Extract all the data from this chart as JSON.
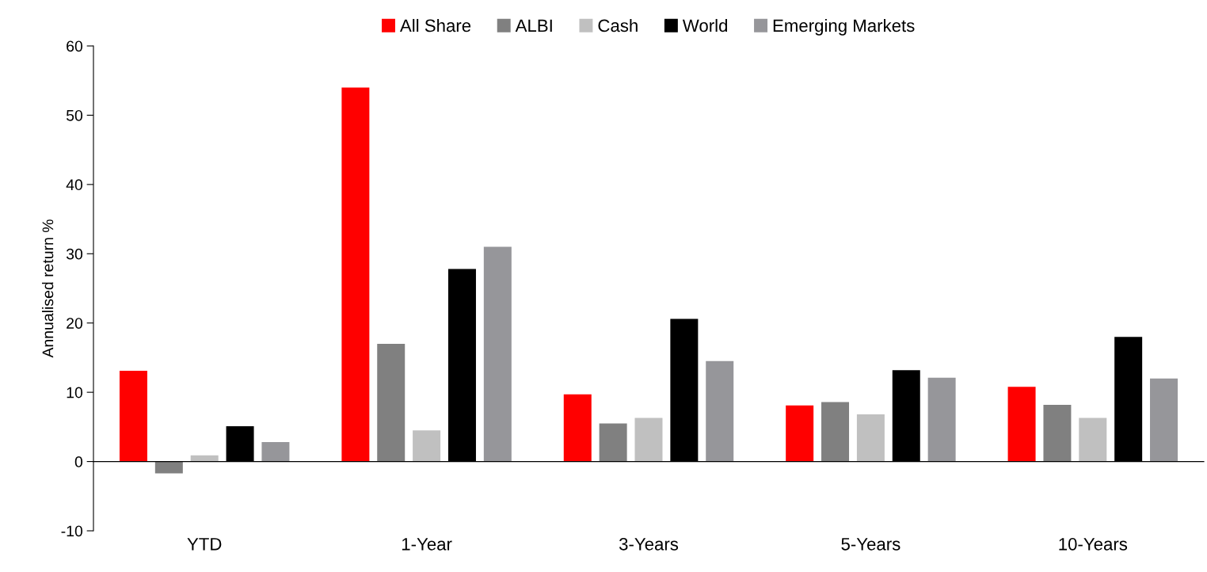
{
  "chart_data": {
    "type": "bar",
    "ylabel": "Annualised return %",
    "categories": [
      "YTD",
      "1-Year",
      "3-Years",
      "5-Years",
      "10-Years"
    ],
    "series": [
      {
        "name": "All Share",
        "color": "#ff0000",
        "values": [
          13.1,
          54,
          9.7,
          8.1,
          10.8
        ]
      },
      {
        "name": "ALBI",
        "color": "#808080",
        "values": [
          -1.7,
          17,
          5.5,
          8.6,
          8.2
        ]
      },
      {
        "name": "Cash",
        "color": "#c0c0c0",
        "values": [
          0.9,
          4.5,
          6.3,
          6.8,
          6.3
        ]
      },
      {
        "name": "World",
        "color": "#000000",
        "values": [
          5.1,
          27.8,
          20.6,
          13.2,
          18
        ]
      },
      {
        "name": "Emerging Markets",
        "color": "#96969a",
        "values": [
          2.8,
          31,
          14.5,
          12.1,
          12
        ]
      }
    ],
    "ylim": [
      -10,
      60
    ],
    "yticks": [
      -10,
      0,
      10,
      20,
      30,
      40,
      50,
      60
    ],
    "legend": "top"
  }
}
